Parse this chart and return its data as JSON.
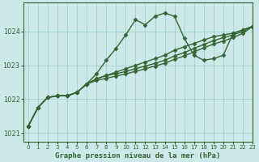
{
  "background_color": "#cce8e8",
  "plot_bg_color": "#cce8e8",
  "grid_color": "#99cccc",
  "line_color": "#336633",
  "title": "Graphe pression niveau de la mer (hPa)",
  "xlim": [
    -0.5,
    23
  ],
  "ylim": [
    1020.75,
    1024.85
  ],
  "yticks": [
    1021,
    1022,
    1023,
    1024
  ],
  "xticks": [
    0,
    1,
    2,
    3,
    4,
    5,
    6,
    7,
    8,
    9,
    10,
    11,
    12,
    13,
    14,
    15,
    16,
    17,
    18,
    19,
    20,
    21,
    22,
    23
  ],
  "series_main": [
    1021.2,
    1021.75,
    1022.05,
    1022.1,
    1022.1,
    1022.2,
    1022.45,
    1022.75,
    1023.15,
    1023.5,
    1023.9,
    1024.35,
    1024.2,
    1024.45,
    1024.55,
    1024.45,
    1023.8,
    1023.3,
    1023.15,
    1023.2,
    1023.3,
    1023.95,
    1024.05,
    1024.15
  ],
  "series_line1": [
    1021.2,
    1021.75,
    1022.05,
    1022.1,
    1022.1,
    1022.2,
    1022.45,
    1022.6,
    1022.7,
    1022.8,
    1022.9,
    1023.0,
    1023.1,
    1023.2,
    1023.3,
    1023.45,
    1023.55,
    1023.65,
    1023.75,
    1023.85,
    1023.9,
    1023.95,
    1024.05,
    1024.15
  ],
  "series_line2": [
    1021.2,
    1021.75,
    1022.05,
    1022.1,
    1022.1,
    1022.2,
    1022.45,
    1022.6,
    1022.7,
    1022.75,
    1022.82,
    1022.9,
    1022.98,
    1023.06,
    1023.15,
    1023.28,
    1023.38,
    1023.5,
    1023.62,
    1023.73,
    1023.82,
    1023.9,
    1024.0,
    1024.15
  ],
  "series_line3": [
    1021.2,
    1021.75,
    1022.05,
    1022.1,
    1022.1,
    1022.2,
    1022.45,
    1022.55,
    1022.62,
    1022.68,
    1022.75,
    1022.82,
    1022.9,
    1022.98,
    1023.06,
    1023.18,
    1023.28,
    1023.4,
    1023.52,
    1023.63,
    1023.72,
    1023.82,
    1023.95,
    1024.15
  ],
  "marker": "D",
  "marker_size": 2.5,
  "linewidth": 1.0
}
